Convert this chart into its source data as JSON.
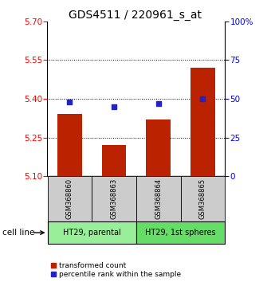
{
  "title": "GDS4511 / 220961_s_at",
  "samples": [
    "GSM368860",
    "GSM368863",
    "GSM368864",
    "GSM368865"
  ],
  "bar_values": [
    5.34,
    5.22,
    5.32,
    5.52
  ],
  "bar_bottom": 5.1,
  "percentile_values": [
    48,
    45,
    47,
    50
  ],
  "cell_lines": [
    {
      "label": "HT29, parental",
      "samples": [
        0,
        1
      ],
      "color": "#99ee99"
    },
    {
      "label": "HT29, 1st spheres",
      "samples": [
        2,
        3
      ],
      "color": "#66dd66"
    }
  ],
  "ylim_left": [
    5.1,
    5.7
  ],
  "ylim_right": [
    0,
    100
  ],
  "yticks_left": [
    5.1,
    5.25,
    5.4,
    5.55,
    5.7
  ],
  "yticks_right": [
    0,
    25,
    50,
    75,
    100
  ],
  "ytick_labels_right": [
    "0",
    "25",
    "50",
    "75",
    "100%"
  ],
  "bar_color": "#bb2200",
  "marker_color": "#2222cc",
  "bar_width": 0.55,
  "background_color": "#ffffff",
  "sample_box_color": "#cccccc",
  "title_fontsize": 10,
  "tick_fontsize": 7.5,
  "sample_fontsize": 6,
  "cellline_fontsize": 7,
  "legend_fontsize": 6.5
}
